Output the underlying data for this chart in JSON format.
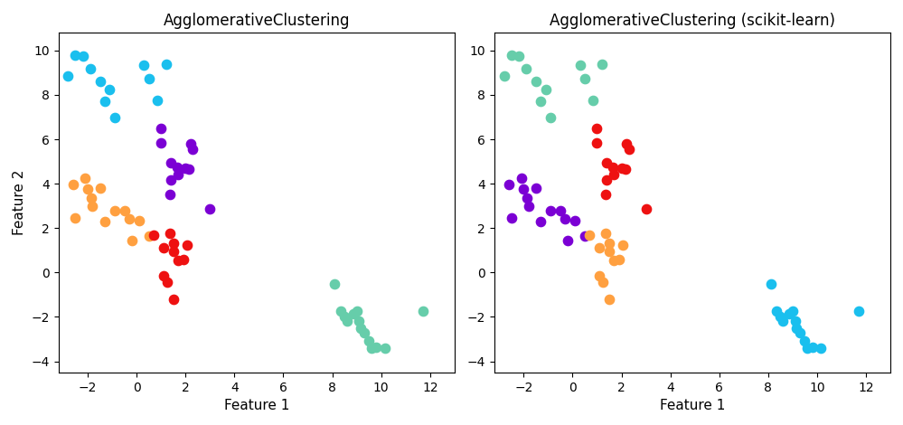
{
  "title_left": "AgglomerativeClustering",
  "title_right": "AgglomerativeClustering (scikit-learn)",
  "xlabel": "Feature 1",
  "ylabel": "Feature 2",
  "figsize": [
    9.99,
    4.7
  ],
  "dpi": 100,
  "clusters_left": {
    "cyan": [
      [
        -2.5,
        9.8
      ],
      [
        -2.2,
        9.75
      ],
      [
        -2.8,
        8.85
      ],
      [
        -1.5,
        8.6
      ],
      [
        -1.9,
        9.2
      ],
      [
        -1.1,
        8.25
      ],
      [
        -1.3,
        7.7
      ],
      [
        -0.9,
        7.0
      ],
      [
        0.3,
        9.35
      ],
      [
        1.2,
        9.4
      ],
      [
        0.5,
        8.75
      ],
      [
        0.85,
        7.75
      ]
    ],
    "purple": [
      [
        1.0,
        6.5
      ],
      [
        1.0,
        5.85
      ],
      [
        2.2,
        5.8
      ],
      [
        2.3,
        5.55
      ],
      [
        1.4,
        4.95
      ],
      [
        1.65,
        4.75
      ],
      [
        2.0,
        4.7
      ],
      [
        2.15,
        4.65
      ],
      [
        1.7,
        4.4
      ],
      [
        1.4,
        4.15
      ],
      [
        1.35,
        3.5
      ],
      [
        3.0,
        2.85
      ]
    ],
    "orange": [
      [
        -2.6,
        3.95
      ],
      [
        -2.5,
        2.45
      ],
      [
        -2.1,
        4.25
      ],
      [
        -2.0,
        3.75
      ],
      [
        -1.85,
        3.35
      ],
      [
        -1.8,
        3.0
      ],
      [
        -1.5,
        3.8
      ],
      [
        -1.3,
        2.3
      ],
      [
        -0.9,
        2.8
      ],
      [
        -0.5,
        2.8
      ],
      [
        -0.3,
        2.4
      ],
      [
        0.1,
        2.35
      ],
      [
        -0.2,
        1.45
      ],
      [
        0.5,
        1.65
      ]
    ],
    "red": [
      [
        0.7,
        1.7
      ],
      [
        1.35,
        1.75
      ],
      [
        1.5,
        1.3
      ],
      [
        2.05,
        1.25
      ],
      [
        1.1,
        1.1
      ],
      [
        1.5,
        0.95
      ],
      [
        1.7,
        0.55
      ],
      [
        1.9,
        0.6
      ],
      [
        1.1,
        -0.15
      ],
      [
        1.25,
        -0.45
      ],
      [
        1.5,
        -1.2
      ]
    ],
    "mediumseagreen": [
      [
        8.1,
        -0.5
      ],
      [
        8.35,
        -1.75
      ],
      [
        8.5,
        -2.0
      ],
      [
        8.6,
        -2.2
      ],
      [
        8.85,
        -1.85
      ],
      [
        9.0,
        -1.75
      ],
      [
        9.1,
        -2.2
      ],
      [
        9.15,
        -2.5
      ],
      [
        9.3,
        -2.7
      ],
      [
        9.5,
        -3.1
      ],
      [
        9.6,
        -3.4
      ],
      [
        9.8,
        -3.35
      ],
      [
        10.15,
        -3.4
      ],
      [
        11.7,
        -1.75
      ]
    ]
  },
  "clusters_right": {
    "mediumseagreen": [
      [
        -2.5,
        9.8
      ],
      [
        -2.2,
        9.75
      ],
      [
        -2.8,
        8.85
      ],
      [
        -1.5,
        8.6
      ],
      [
        -1.9,
        9.2
      ],
      [
        -1.1,
        8.25
      ],
      [
        -1.3,
        7.7
      ],
      [
        -0.9,
        7.0
      ],
      [
        0.3,
        9.35
      ],
      [
        1.2,
        9.4
      ],
      [
        0.5,
        8.75
      ],
      [
        0.85,
        7.75
      ]
    ],
    "red": [
      [
        1.0,
        6.5
      ],
      [
        1.0,
        5.85
      ],
      [
        2.2,
        5.8
      ],
      [
        2.3,
        5.55
      ],
      [
        1.4,
        4.95
      ],
      [
        1.65,
        4.75
      ],
      [
        2.0,
        4.7
      ],
      [
        2.15,
        4.65
      ],
      [
        1.7,
        4.4
      ],
      [
        1.4,
        4.15
      ],
      [
        1.35,
        3.5
      ],
      [
        3.0,
        2.85
      ]
    ],
    "purple": [
      [
        -2.6,
        3.95
      ],
      [
        -2.5,
        2.45
      ],
      [
        -2.1,
        4.25
      ],
      [
        -2.0,
        3.75
      ],
      [
        -1.85,
        3.35
      ],
      [
        -1.8,
        3.0
      ],
      [
        -1.5,
        3.8
      ],
      [
        -1.3,
        2.3
      ],
      [
        -0.9,
        2.8
      ],
      [
        -0.5,
        2.8
      ],
      [
        -0.3,
        2.4
      ],
      [
        0.1,
        2.35
      ],
      [
        -0.2,
        1.45
      ],
      [
        0.5,
        1.65
      ]
    ],
    "orange": [
      [
        0.7,
        1.7
      ],
      [
        1.35,
        1.75
      ],
      [
        1.5,
        1.3
      ],
      [
        2.05,
        1.25
      ],
      [
        1.1,
        1.1
      ],
      [
        1.5,
        0.95
      ],
      [
        1.7,
        0.55
      ],
      [
        1.9,
        0.6
      ],
      [
        1.1,
        -0.15
      ],
      [
        1.25,
        -0.45
      ],
      [
        1.5,
        -1.2
      ]
    ],
    "cyan": [
      [
        8.1,
        -0.5
      ],
      [
        8.35,
        -1.75
      ],
      [
        8.5,
        -2.0
      ],
      [
        8.6,
        -2.2
      ],
      [
        8.85,
        -1.85
      ],
      [
        9.0,
        -1.75
      ],
      [
        9.1,
        -2.2
      ],
      [
        9.15,
        -2.5
      ],
      [
        9.3,
        -2.7
      ],
      [
        9.5,
        -3.1
      ],
      [
        9.6,
        -3.4
      ],
      [
        9.8,
        -3.35
      ],
      [
        10.15,
        -3.4
      ],
      [
        11.7,
        -1.75
      ]
    ]
  },
  "color_map": {
    "cyan": "#1ABFEE",
    "purple": "#7B00D4",
    "orange": "#FFA040",
    "red": "#EE1111",
    "mediumseagreen": "#66CDAA"
  },
  "marker_size": 55,
  "xlim": [
    -3.2,
    13.0
  ],
  "ylim": [
    -4.5,
    10.8
  ],
  "xticks": [
    -2,
    0,
    2,
    4,
    6,
    8,
    10,
    12
  ],
  "yticks": [
    -4,
    -2,
    0,
    2,
    4,
    6,
    8,
    10
  ]
}
